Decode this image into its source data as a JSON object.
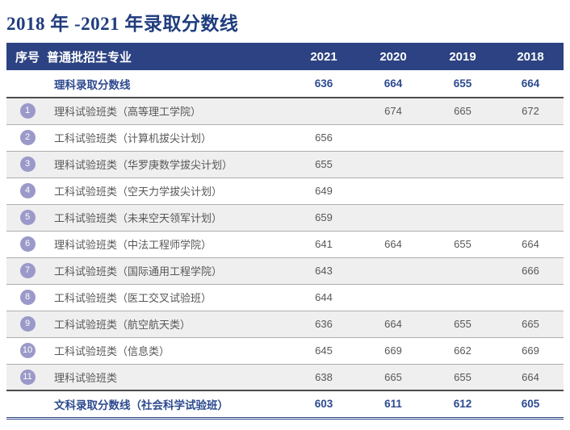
{
  "title": "2018 年 -2021 年录取分数线",
  "colors": {
    "header_bg": "#2c4282",
    "title_navy": "#203d7d",
    "summary_blue": "#2d4a8f",
    "badge_bg": "#9b99c9",
    "stripe_bg": "#efefef",
    "body_text": "#595757",
    "thick_rule": "#4d4d4d",
    "bottom_rule": "#2b4186"
  },
  "table": {
    "headers": {
      "num": "序号",
      "major": "普通批招生专业",
      "y2021": "2021",
      "y2020": "2020",
      "y2019": "2019",
      "y2018": "2018"
    },
    "science_summary": {
      "label": "理科录取分数线",
      "values": [
        "636",
        "664",
        "655",
        "664"
      ]
    },
    "rows": [
      {
        "num": "1",
        "major": "理科试验班类（高等理工学院）",
        "values": [
          "",
          "674",
          "665",
          "672"
        ]
      },
      {
        "num": "2",
        "major": "工科试验班类（计算机拔尖计划）",
        "values": [
          "656",
          "",
          "",
          ""
        ]
      },
      {
        "num": "3",
        "major": "理科试验班类（华罗庚数学拔尖计划）",
        "values": [
          "655",
          "",
          "",
          ""
        ]
      },
      {
        "num": "4",
        "major": "工科试验班类（空天力学拔尖计划）",
        "values": [
          "649",
          "",
          "",
          ""
        ]
      },
      {
        "num": "5",
        "major": "工科试验班类（未来空天领军计划）",
        "values": [
          "659",
          "",
          "",
          ""
        ]
      },
      {
        "num": "6",
        "major": "理科试验班类（中法工程师学院）",
        "values": [
          "641",
          "664",
          "655",
          "664"
        ]
      },
      {
        "num": "7",
        "major": "工科试验班类（国际通用工程学院）",
        "values": [
          "643",
          "",
          "",
          "666"
        ]
      },
      {
        "num": "8",
        "major": "工科试验班类（医工交叉试验班）",
        "values": [
          "644",
          "",
          "",
          ""
        ]
      },
      {
        "num": "9",
        "major": "工科试验班类（航空航天类）",
        "values": [
          "636",
          "664",
          "655",
          "665"
        ]
      },
      {
        "num": "10",
        "major": "工科试验班类（信息类）",
        "values": [
          "645",
          "669",
          "662",
          "669"
        ]
      },
      {
        "num": "11",
        "major": "理科试验班类",
        "values": [
          "638",
          "665",
          "655",
          "664"
        ]
      }
    ],
    "arts_summary": {
      "label": "文科录取分数线（社会科学试验班）",
      "values": [
        "603",
        "611",
        "612",
        "605"
      ]
    }
  }
}
